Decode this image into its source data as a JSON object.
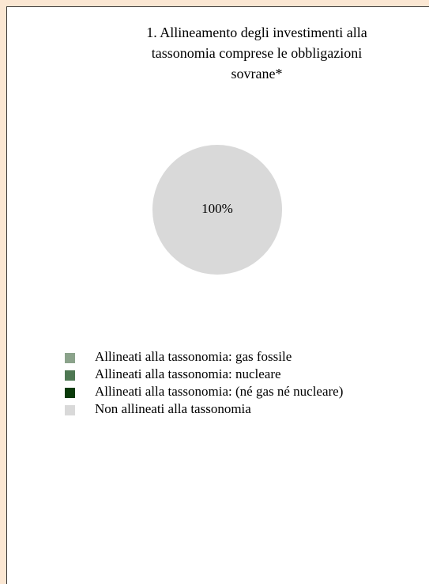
{
  "chart_data": {
    "type": "pie",
    "title": [
      "1. Allineamento degli investimenti alla",
      "tassonomia comprese le obbligazioni",
      "sovrane*"
    ],
    "categories": [
      "Allineati alla tassonomia: gas fossile",
      "Allineati alla tassonomia: nucleare",
      "Allineati alla tassonomia: (né gas né nucleare)",
      "Non allineati alla tassonomia"
    ],
    "values": [
      0,
      0,
      0,
      100
    ],
    "value_labels": [
      null,
      null,
      null,
      "100%"
    ],
    "colors": [
      "#8ba38b",
      "#4e7853",
      "#0a3a0a",
      "#d9d9d9"
    ]
  }
}
